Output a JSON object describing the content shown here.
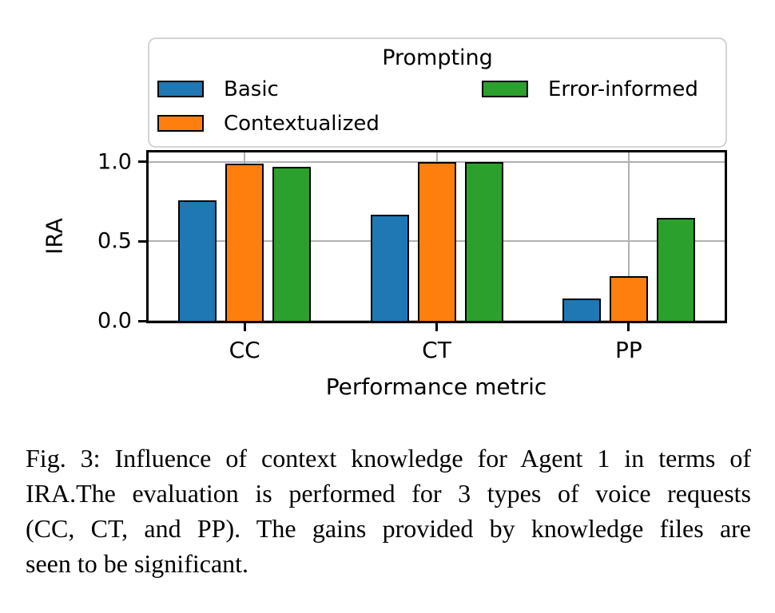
{
  "chart_data": {
    "type": "bar",
    "title": "",
    "categories": [
      "CC",
      "CT",
      "PP"
    ],
    "series": [
      {
        "name": "Basic",
        "color": "#1f77b4",
        "values": [
          0.76,
          0.67,
          0.14
        ]
      },
      {
        "name": "Contextualized",
        "color": "#ff7f0e",
        "values": [
          0.99,
          1.0,
          0.28
        ]
      },
      {
        "name": "Error-informed",
        "color": "#2ca02c",
        "values": [
          0.97,
          1.0,
          0.65
        ]
      }
    ],
    "xlabel": "Performance metric",
    "ylabel": "IRA",
    "ylim": [
      0,
      1.06
    ],
    "ytick_values": [
      0.0,
      0.5,
      1.0
    ],
    "ytick_labels": [
      "0.0",
      "0.5",
      "1.0"
    ],
    "grid": "both",
    "grid_color": "#b0b0b0",
    "bar_edge_color": "#000000",
    "legend": {
      "title": "Prompting",
      "position": "top",
      "columns": 2,
      "entries": [
        "Basic",
        "Contextualized",
        "Error-informed"
      ]
    }
  },
  "figure": {
    "caption_lines": [
      "Fig. 3: Influence of context knowledge for Agent 1 in terms of",
      "IRA.The evaluation is performed for 3 types of voice requests",
      "(CC, CT, and PP). The gains provided by knowledge files are",
      "seen to be significant."
    ]
  }
}
